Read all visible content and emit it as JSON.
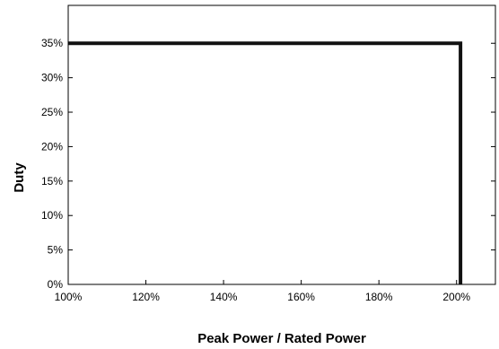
{
  "chart_data": {
    "type": "line",
    "xlabel": "Peak Power / Rated Power",
    "ylabel": "Duty",
    "x_ticks": [
      {
        "value": 100,
        "label": "100%"
      },
      {
        "value": 120,
        "label": "120%"
      },
      {
        "value": 140,
        "label": "140%"
      },
      {
        "value": 160,
        "label": "160%"
      },
      {
        "value": 180,
        "label": "180%"
      },
      {
        "value": 200,
        "label": "200%"
      }
    ],
    "y_ticks": [
      {
        "value": 0,
        "label": "0%"
      },
      {
        "value": 5,
        "label": "5%"
      },
      {
        "value": 10,
        "label": "10%"
      },
      {
        "value": 15,
        "label": "15%"
      },
      {
        "value": 20,
        "label": "20%"
      },
      {
        "value": 25,
        "label": "25%"
      },
      {
        "value": 30,
        "label": "30%"
      },
      {
        "value": 35,
        "label": "35%"
      }
    ],
    "xlim": [
      100,
      210
    ],
    "ylim": [
      0,
      40.5
    ],
    "grid": false,
    "series": [
      {
        "color": "#111111",
        "x": [
          100,
          201,
          201
        ],
        "y": [
          35,
          35,
          0
        ]
      }
    ]
  }
}
